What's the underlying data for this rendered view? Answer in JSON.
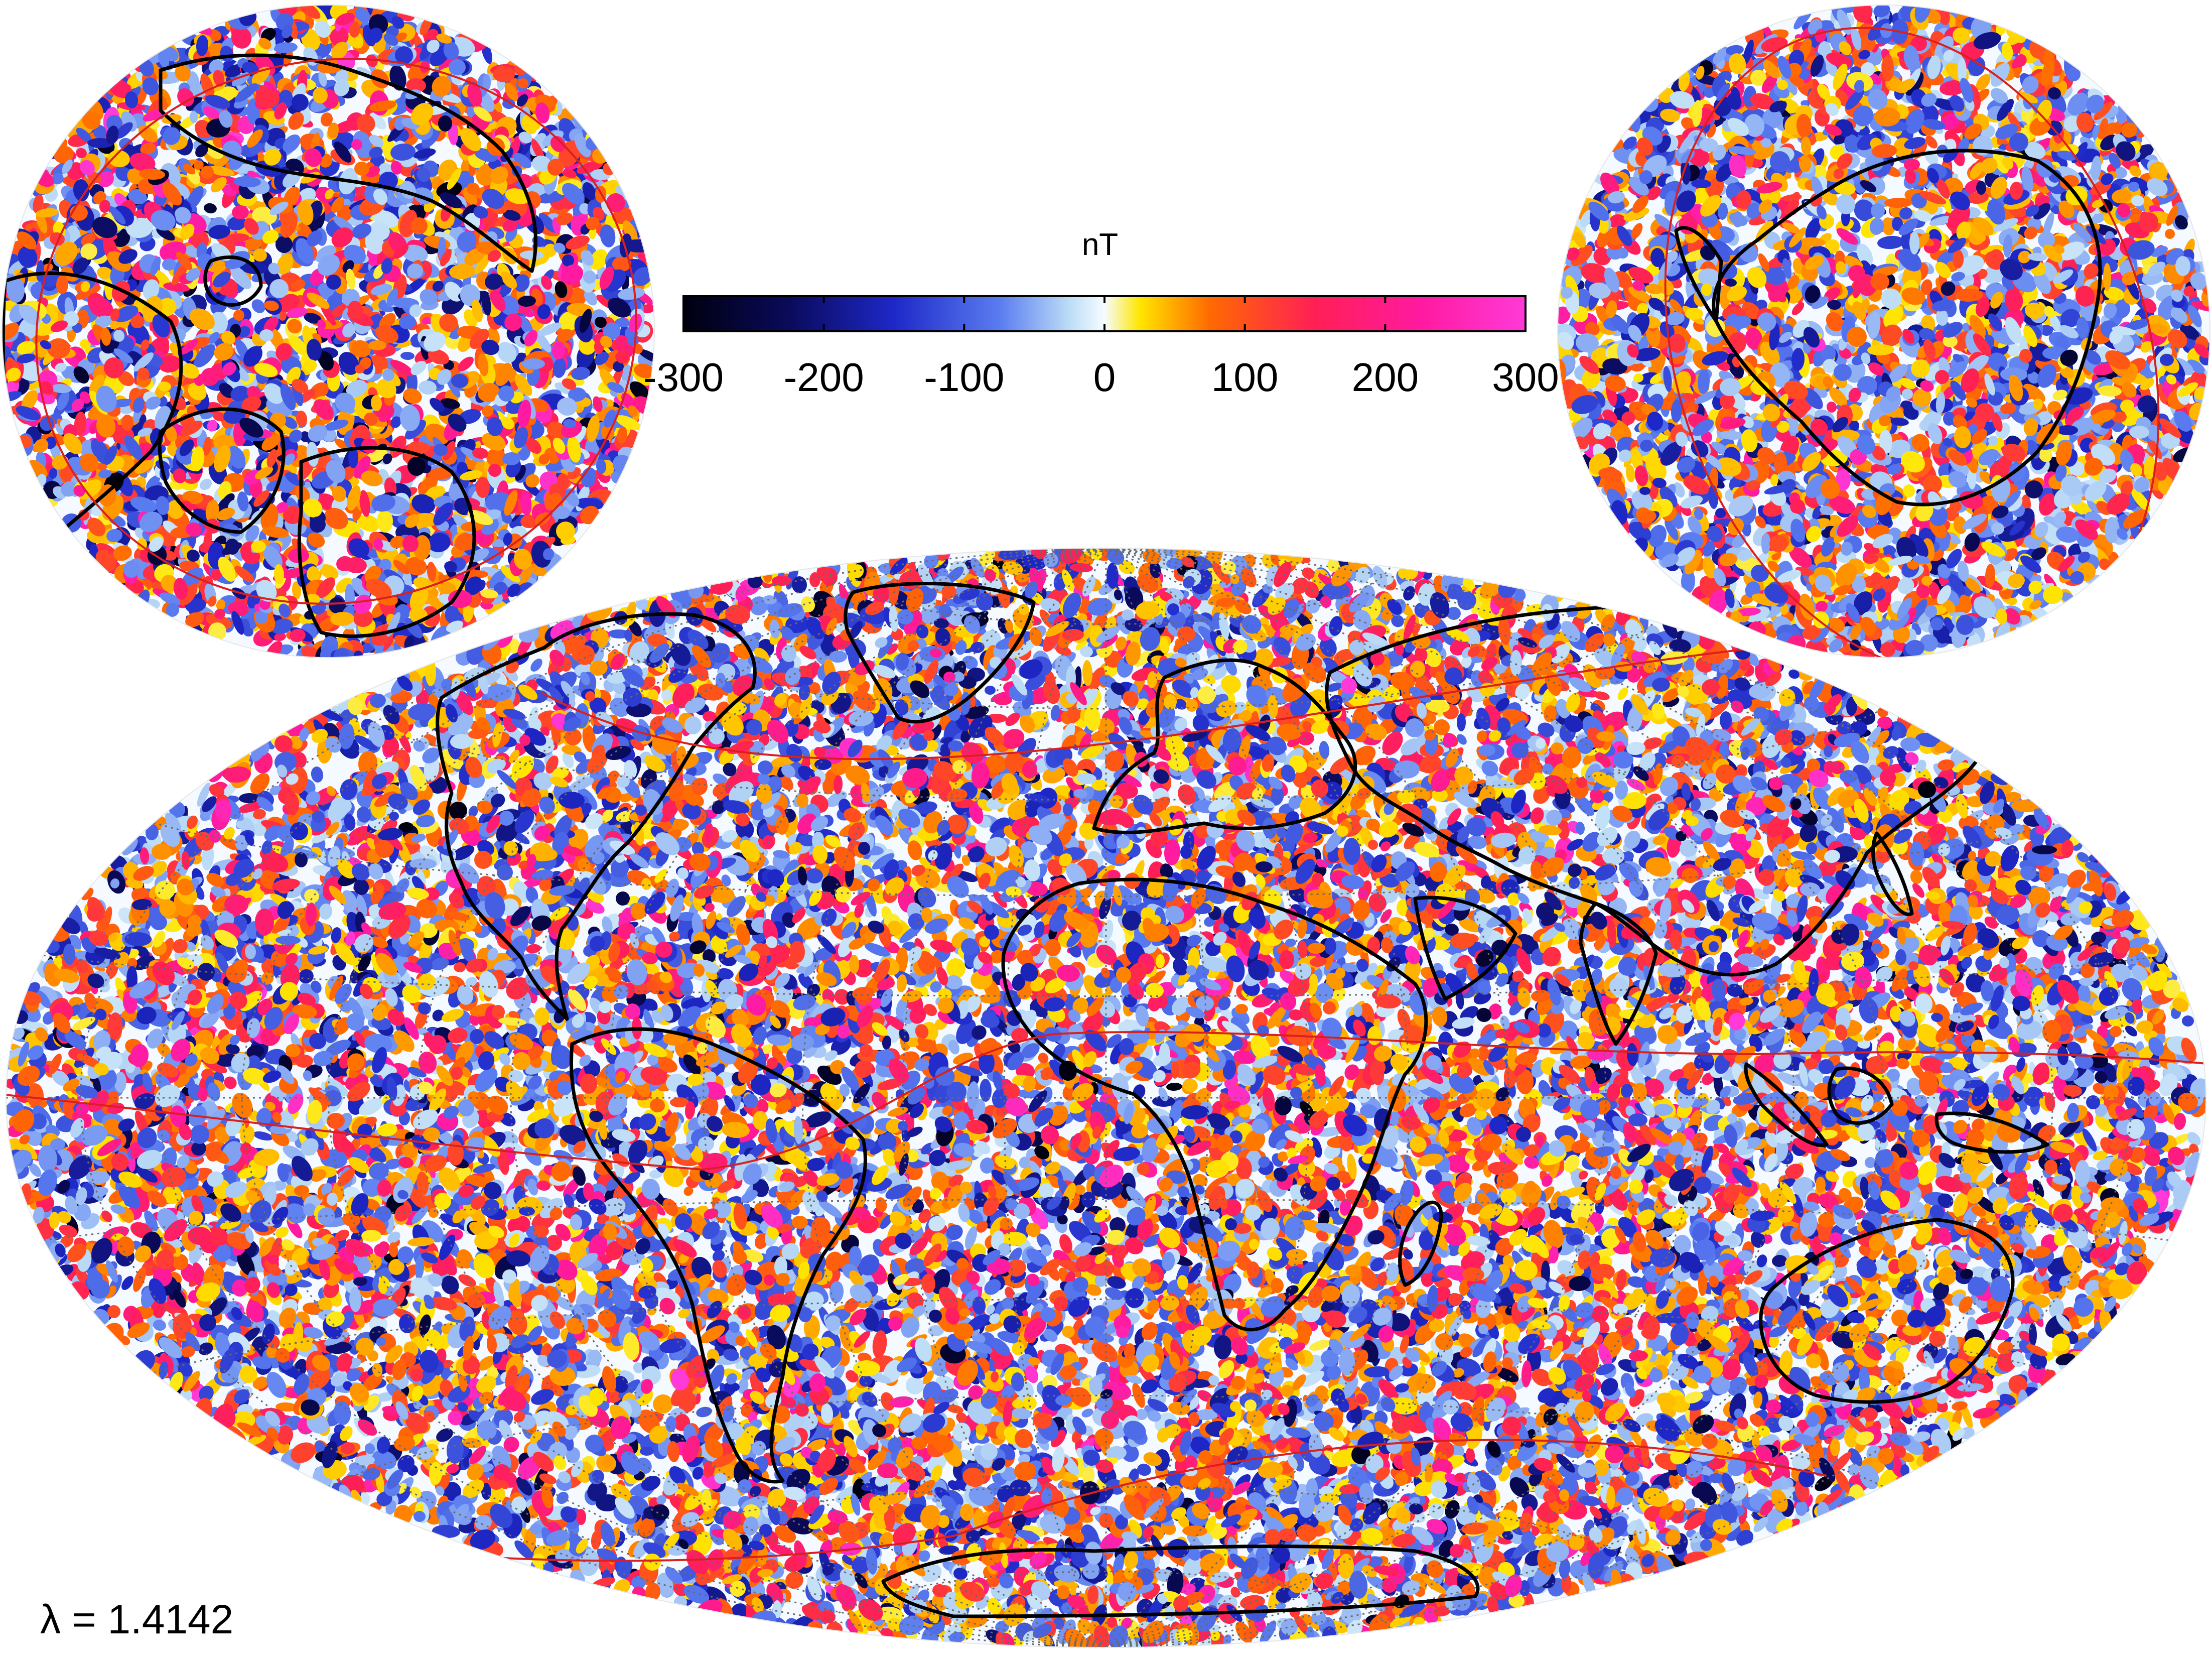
{
  "colorbar": {
    "unit": "nT",
    "min": -300,
    "max": 300,
    "tick_labels": [
      "-300",
      "-200",
      "-100",
      "0",
      "100",
      "200",
      "300"
    ],
    "tick_values": [
      -300,
      -200,
      -100,
      0,
      100,
      200,
      300
    ],
    "stops": [
      {
        "value": -300,
        "color": "#000010"
      },
      {
        "value": -225,
        "color": "#0a0a5a"
      },
      {
        "value": -150,
        "color": "#1e28c8"
      },
      {
        "value": -75,
        "color": "#5a7cf0"
      },
      {
        "value": -25,
        "color": "#bcdcf6"
      },
      {
        "value": 0,
        "color": "#f6fcff"
      },
      {
        "value": 25,
        "color": "#ffe600"
      },
      {
        "value": 75,
        "color": "#ff6a00"
      },
      {
        "value": 150,
        "color": "#ff1f56"
      },
      {
        "value": 225,
        "color": "#ff1aa0"
      },
      {
        "value": 300,
        "color": "#ff3ad8"
      }
    ]
  },
  "lambda_label": "λ = 1.4142",
  "colors": {
    "coastline": "#000000",
    "magnetic_equator_line": "#d9201e",
    "graticule": "#6a6a6a",
    "background": "#ffffff"
  },
  "maps": [
    {
      "name": "global-map",
      "projection": "hammer-aitoff"
    },
    {
      "name": "north-polar-map",
      "projection": "orthographic-north-pole"
    },
    {
      "name": "south-polar-map",
      "projection": "orthographic-south-pole"
    }
  ]
}
